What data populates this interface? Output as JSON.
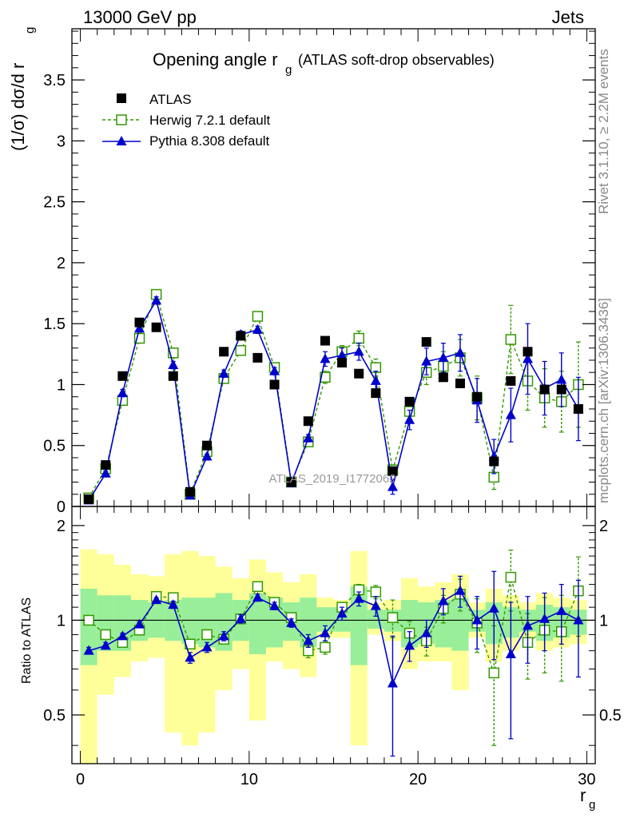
{
  "header": {
    "left": "13000 GeV pp",
    "right": "Jets"
  },
  "side_text": {
    "rivet": "Rivet 3.1.10, ≥ 2.2M events",
    "mcplots": "mcplots.cern.ch [arXiv:1306.3436]"
  },
  "chart_data": [
    {
      "type": "scatter",
      "panel": "main",
      "title_main": "Opening angle r",
      "title_sub": "g",
      "title_tail": "(ATLAS soft-drop observables)",
      "ylabel": "(1/σ) dσ/d r",
      "ylabel_sub": "g",
      "xlim": [
        -0.5,
        30.5
      ],
      "ylim": [
        0,
        3.92
      ],
      "yticks": [
        0,
        0.5,
        1,
        1.5,
        2,
        2.5,
        3,
        3.5
      ],
      "ytick_labels": [
        "0",
        "0.5",
        "1",
        "1.5",
        "2",
        "2.5",
        "3",
        "3.5"
      ],
      "watermark": "ATLAS_2019_I1772062",
      "legend": {
        "placement": "top-left",
        "entries": [
          "ATLAS",
          "Herwig 7.2.1 default",
          "Pythia 8.308 default"
        ]
      },
      "x": [
        0.5,
        1.5,
        2.5,
        3.5,
        4.5,
        5.5,
        6.5,
        7.5,
        8.5,
        9.5,
        10.5,
        11.5,
        12.5,
        13.5,
        14.5,
        15.5,
        16.5,
        17.5,
        18.5,
        19.5,
        20.5,
        21.5,
        22.5,
        23.5,
        24.5,
        25.5,
        26.5,
        27.5,
        28.5,
        29.5
      ],
      "series": [
        {
          "name": "ATLAS",
          "color": "#000000",
          "marker": "filled-square",
          "values": [
            0.06,
            0.34,
            1.07,
            1.51,
            1.47,
            1.07,
            0.12,
            0.5,
            1.27,
            1.4,
            1.22,
            1.0,
            0.2,
            0.7,
            1.36,
            1.18,
            1.09,
            0.93,
            0.29,
            0.86,
            1.35,
            1.06,
            1.01,
            0.9,
            0.37,
            1.03,
            1.27,
            0.96,
            0.96,
            0.8
          ]
        },
        {
          "name": "Herwig 7.2.1 default",
          "color": "#339900",
          "marker": "open-square",
          "line": "dashed",
          "values": [
            0.07,
            0.31,
            0.87,
            1.38,
            1.74,
            1.26,
            0.1,
            0.45,
            1.05,
            1.28,
            1.56,
            1.14,
            0.2,
            0.53,
            1.06,
            1.27,
            1.38,
            1.14,
            0.3,
            0.78,
            1.1,
            1.15,
            1.22,
            0.89,
            0.24,
            1.37,
            1.03,
            0.89,
            0.86,
            1.0
          ],
          "errors": [
            0.01,
            0.02,
            0.03,
            0.03,
            0.03,
            0.03,
            0.01,
            0.02,
            0.03,
            0.03,
            0.03,
            0.03,
            0.02,
            0.03,
            0.05,
            0.05,
            0.06,
            0.07,
            0.04,
            0.07,
            0.1,
            0.12,
            0.15,
            0.18,
            0.1,
            0.28,
            0.24,
            0.24,
            0.25,
            0.35
          ]
        },
        {
          "name": "Pythia 8.308 default",
          "color": "#0000cc",
          "marker": "filled-triangle",
          "line": "solid",
          "values": [
            0.05,
            0.27,
            0.93,
            1.46,
            1.69,
            1.16,
            0.09,
            0.41,
            1.09,
            1.41,
            1.45,
            1.11,
            0.19,
            0.56,
            1.21,
            1.24,
            1.27,
            1.03,
            0.16,
            0.71,
            1.19,
            1.22,
            1.26,
            0.87,
            0.41,
            0.75,
            1.21,
            0.97,
            1.04,
            0.8
          ],
          "errors": [
            0.01,
            0.02,
            0.03,
            0.03,
            0.03,
            0.03,
            0.01,
            0.02,
            0.03,
            0.03,
            0.03,
            0.03,
            0.02,
            0.03,
            0.06,
            0.06,
            0.07,
            0.08,
            0.06,
            0.08,
            0.11,
            0.12,
            0.15,
            0.18,
            0.14,
            0.22,
            0.29,
            0.22,
            0.22,
            0.26
          ]
        }
      ]
    },
    {
      "type": "scatter",
      "panel": "ratio",
      "ylabel": "Ratio to ATLAS",
      "xlabel": "r",
      "xlabel_sub": "g",
      "xlim": [
        -0.5,
        30.5
      ],
      "ylim": [
        0.35,
        2.3
      ],
      "yticks": [
        0.5,
        1,
        2
      ],
      "ytick_labels": [
        "0.5",
        "1",
        "2"
      ],
      "xticks": [
        0,
        10,
        20,
        30
      ],
      "xtick_labels": [
        "0",
        "10",
        "20",
        "30"
      ],
      "reference_line": 1,
      "band_inner": {
        "color": "#99ee99",
        "lo": [
          0.72,
          0.8,
          0.8,
          0.86,
          0.88,
          0.86,
          0.84,
          0.82,
          0.8,
          0.86,
          0.78,
          0.82,
          0.86,
          0.82,
          0.92,
          0.92,
          0.72,
          0.94,
          0.92,
          0.82,
          0.84,
          0.82,
          0.8,
          0.92,
          0.84,
          0.88,
          0.92,
          0.86,
          0.88,
          0.9
        ],
        "hi": [
          1.26,
          1.2,
          1.2,
          1.16,
          1.14,
          1.16,
          1.18,
          1.18,
          1.22,
          1.16,
          1.22,
          1.18,
          1.14,
          1.18,
          1.1,
          1.1,
          1.28,
          1.08,
          1.08,
          1.16,
          1.14,
          1.16,
          1.18,
          1.08,
          1.14,
          1.1,
          1.08,
          1.12,
          1.1,
          1.08
        ]
      },
      "band_outer": {
        "color": "#ffff99",
        "lo": [
          0.32,
          0.58,
          0.66,
          0.74,
          0.76,
          0.44,
          0.4,
          0.44,
          0.6,
          0.7,
          0.48,
          0.74,
          0.7,
          0.66,
          0.88,
          0.88,
          0.4,
          0.9,
          0.86,
          0.7,
          0.74,
          0.74,
          0.6,
          0.88,
          0.74,
          0.8,
          0.88,
          0.8,
          0.82,
          0.84
        ],
        "hi": [
          1.68,
          1.62,
          1.5,
          1.4,
          1.38,
          1.62,
          1.66,
          1.6,
          1.48,
          1.36,
          1.56,
          1.42,
          1.32,
          1.4,
          1.18,
          1.16,
          1.66,
          1.14,
          1.16,
          1.36,
          1.28,
          1.32,
          1.4,
          1.14,
          1.26,
          1.2,
          1.14,
          1.22,
          1.18,
          1.16
        ]
      },
      "x": [
        0.5,
        1.5,
        2.5,
        3.5,
        4.5,
        5.5,
        6.5,
        7.5,
        8.5,
        9.5,
        10.5,
        11.5,
        12.5,
        13.5,
        14.5,
        15.5,
        16.5,
        17.5,
        18.5,
        19.5,
        20.5,
        21.5,
        22.5,
        23.5,
        24.5,
        25.5,
        26.5,
        27.5,
        28.5,
        29.5
      ],
      "series": [
        {
          "name": "Herwig 7.2.1 default",
          "color": "#339900",
          "marker": "open-square",
          "line": "dashed",
          "values": [
            1.0,
            0.9,
            0.85,
            0.93,
            1.19,
            1.18,
            0.84,
            0.9,
            0.87,
            1.01,
            1.28,
            1.14,
            1.02,
            0.8,
            0.82,
            1.1,
            1.25,
            1.23,
            1.02,
            0.91,
            0.86,
            1.09,
            1.21,
            0.98,
            0.68,
            1.37,
            0.85,
            0.93,
            0.92,
            1.24
          ],
          "errors": [
            0.02,
            0.02,
            0.02,
            0.02,
            0.02,
            0.03,
            0.03,
            0.03,
            0.03,
            0.03,
            0.03,
            0.03,
            0.03,
            0.04,
            0.04,
            0.04,
            0.05,
            0.06,
            0.14,
            0.08,
            0.09,
            0.11,
            0.14,
            0.19,
            0.28,
            0.3,
            0.2,
            0.25,
            0.28,
            0.35
          ]
        },
        {
          "name": "Pythia 8.308 default",
          "color": "#0000cc",
          "marker": "filled-triangle",
          "line": "solid",
          "values": [
            0.8,
            0.83,
            0.89,
            0.97,
            1.16,
            1.12,
            0.76,
            0.82,
            0.89,
            1.01,
            1.18,
            1.11,
            0.98,
            0.86,
            0.91,
            1.05,
            1.17,
            1.11,
            0.63,
            0.83,
            0.91,
            1.15,
            1.24,
            1.0,
            1.09,
            0.78,
            0.96,
            1.01,
            1.07,
            1.0
          ],
          "errors": [
            0.02,
            0.02,
            0.02,
            0.02,
            0.02,
            0.03,
            0.03,
            0.03,
            0.03,
            0.03,
            0.03,
            0.03,
            0.03,
            0.04,
            0.05,
            0.05,
            0.06,
            0.08,
            0.26,
            0.09,
            0.09,
            0.11,
            0.14,
            0.19,
            0.34,
            0.36,
            0.23,
            0.21,
            0.23,
            0.34
          ]
        }
      ]
    }
  ]
}
